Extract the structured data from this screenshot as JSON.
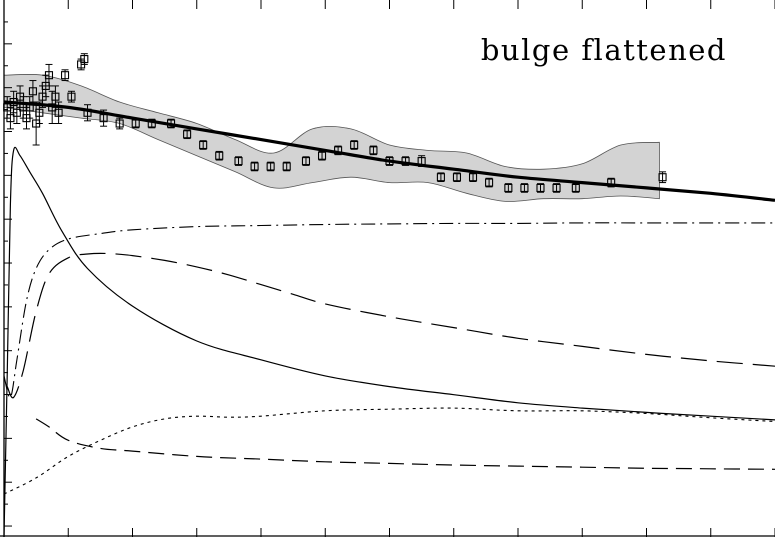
{
  "chart_data": {
    "type": "line",
    "title": "bulge flattened",
    "xlabel": "",
    "ylabel": "",
    "xlim": [
      0,
      12
    ],
    "ylim": [
      0,
      1
    ],
    "grid": false,
    "band": {
      "x": [
        0.0,
        0.6,
        1.2,
        1.8,
        2.4,
        3.0,
        3.6,
        4.2,
        4.8,
        5.4,
        6.0,
        6.6,
        7.2,
        7.8,
        8.4,
        9.0,
        9.6,
        10.2
      ],
      "upper": [
        0.86,
        0.86,
        0.84,
        0.81,
        0.79,
        0.77,
        0.74,
        0.715,
        0.76,
        0.76,
        0.73,
        0.72,
        0.715,
        0.69,
        0.685,
        0.695,
        0.73,
        0.735
      ],
      "lower": [
        0.8,
        0.79,
        0.78,
        0.77,
        0.74,
        0.71,
        0.68,
        0.65,
        0.66,
        0.67,
        0.66,
        0.66,
        0.64,
        0.625,
        0.63,
        0.63,
        0.635,
        0.63
      ]
    },
    "points": [
      {
        "x": 0.05,
        "y": 0.8,
        "err": 0.02
      },
      {
        "x": 0.1,
        "y": 0.78,
        "err": 0.02
      },
      {
        "x": 0.15,
        "y": 0.81,
        "err": 0.02
      },
      {
        "x": 0.2,
        "y": 0.79,
        "err": 0.02
      },
      {
        "x": 0.25,
        "y": 0.82,
        "err": 0.02
      },
      {
        "x": 0.3,
        "y": 0.8,
        "err": 0.02
      },
      {
        "x": 0.35,
        "y": 0.78,
        "err": 0.02
      },
      {
        "x": 0.4,
        "y": 0.8,
        "err": 0.02
      },
      {
        "x": 0.45,
        "y": 0.83,
        "err": 0.02
      },
      {
        "x": 0.5,
        "y": 0.77,
        "err": 0.04
      },
      {
        "x": 0.55,
        "y": 0.79,
        "err": 0.02
      },
      {
        "x": 0.6,
        "y": 0.82,
        "err": 0.02
      },
      {
        "x": 0.65,
        "y": 0.84,
        "err": 0.02
      },
      {
        "x": 0.7,
        "y": 0.86,
        "err": 0.02
      },
      {
        "x": 0.75,
        "y": 0.8,
        "err": 0.03
      },
      {
        "x": 0.8,
        "y": 0.82,
        "err": 0.02
      },
      {
        "x": 0.85,
        "y": 0.79,
        "err": 0.02
      },
      {
        "x": 0.95,
        "y": 0.86,
        "err": 0.01
      },
      {
        "x": 1.05,
        "y": 0.82,
        "err": 0.01
      },
      {
        "x": 1.2,
        "y": 0.88,
        "err": 0.01
      },
      {
        "x": 1.25,
        "y": 0.89,
        "err": 0.01
      },
      {
        "x": 1.3,
        "y": 0.79,
        "err": 0.015
      },
      {
        "x": 1.55,
        "y": 0.78,
        "err": 0.015
      },
      {
        "x": 1.8,
        "y": 0.77,
        "err": 0.01
      },
      {
        "x": 2.05,
        "y": 0.77,
        "err": 0.008
      },
      {
        "x": 2.3,
        "y": 0.77,
        "err": 0.008
      },
      {
        "x": 2.6,
        "y": 0.77,
        "err": 0.008
      },
      {
        "x": 2.85,
        "y": 0.75,
        "err": 0.008
      },
      {
        "x": 3.1,
        "y": 0.73,
        "err": 0.008
      },
      {
        "x": 3.35,
        "y": 0.71,
        "err": 0.008
      },
      {
        "x": 3.65,
        "y": 0.7,
        "err": 0.008
      },
      {
        "x": 3.9,
        "y": 0.69,
        "err": 0.008
      },
      {
        "x": 4.15,
        "y": 0.69,
        "err": 0.008
      },
      {
        "x": 4.4,
        "y": 0.69,
        "err": 0.008
      },
      {
        "x": 4.7,
        "y": 0.7,
        "err": 0.008
      },
      {
        "x": 4.95,
        "y": 0.71,
        "err": 0.008
      },
      {
        "x": 5.2,
        "y": 0.72,
        "err": 0.008
      },
      {
        "x": 5.45,
        "y": 0.73,
        "err": 0.008
      },
      {
        "x": 5.75,
        "y": 0.72,
        "err": 0.008
      },
      {
        "x": 6.0,
        "y": 0.7,
        "err": 0.008
      },
      {
        "x": 6.25,
        "y": 0.7,
        "err": 0.008
      },
      {
        "x": 6.5,
        "y": 0.7,
        "err": 0.01
      },
      {
        "x": 6.8,
        "y": 0.67,
        "err": 0.008
      },
      {
        "x": 7.05,
        "y": 0.67,
        "err": 0.008
      },
      {
        "x": 7.3,
        "y": 0.67,
        "err": 0.008
      },
      {
        "x": 7.55,
        "y": 0.66,
        "err": 0.008
      },
      {
        "x": 7.85,
        "y": 0.65,
        "err": 0.008
      },
      {
        "x": 8.1,
        "y": 0.65,
        "err": 0.008
      },
      {
        "x": 8.35,
        "y": 0.65,
        "err": 0.008
      },
      {
        "x": 8.6,
        "y": 0.65,
        "err": 0.008
      },
      {
        "x": 8.9,
        "y": 0.65,
        "err": 0.008
      },
      {
        "x": 9.45,
        "y": 0.66,
        "err": 0.008
      },
      {
        "x": 10.25,
        "y": 0.67,
        "err": 0.01
      }
    ],
    "series": [
      {
        "style": "thick-solid",
        "x": [
          0.0,
          1.0,
          2.0,
          3.0,
          4.0,
          5.0,
          6.0,
          7.0,
          8.0,
          9.0,
          10.0,
          11.0,
          12.0
        ],
        "y": [
          0.81,
          0.8,
          0.78,
          0.76,
          0.74,
          0.72,
          0.7,
          0.685,
          0.67,
          0.66,
          0.65,
          0.64,
          0.627
        ]
      },
      {
        "style": "thin-solid",
        "x": [
          0.0,
          0.05,
          0.1,
          0.15,
          0.25,
          0.4,
          0.6,
          0.9,
          1.3,
          2.0,
          3.0,
          4.0,
          5.0,
          6.0,
          7.0,
          8.0,
          9.0,
          10.0,
          11.0,
          12.0
        ],
        "y": [
          0.0,
          0.3,
          0.62,
          0.72,
          0.71,
          0.68,
          0.64,
          0.57,
          0.5,
          0.43,
          0.365,
          0.33,
          0.3,
          0.28,
          0.265,
          0.25,
          0.24,
          0.232,
          0.225,
          0.218
        ]
      },
      {
        "style": "dash-dot",
        "x": [
          0.0,
          0.1,
          0.2,
          0.35,
          0.5,
          0.7,
          1.0,
          1.5,
          2.0,
          3.0,
          4.0,
          5.0,
          6.0,
          7.0,
          8.0,
          9.0,
          10.0,
          11.0,
          12.0
        ],
        "y": [
          0.3,
          0.26,
          0.33,
          0.44,
          0.5,
          0.535,
          0.555,
          0.565,
          0.572,
          0.578,
          0.58,
          0.582,
          0.583,
          0.584,
          0.584,
          0.585,
          0.585,
          0.585,
          0.585
        ]
      },
      {
        "style": "long-dash",
        "x": [
          0.05,
          0.15,
          0.3,
          0.5,
          0.7,
          1.0,
          1.3,
          1.6,
          2.0,
          2.5,
          3.0,
          3.5,
          4.0,
          4.5,
          5.0,
          6.0,
          7.0,
          8.0,
          9.0,
          10.0,
          11.0,
          12.0
        ],
        "y": [
          0.28,
          0.26,
          0.31,
          0.42,
          0.49,
          0.52,
          0.527,
          0.528,
          0.524,
          0.515,
          0.503,
          0.488,
          0.47,
          0.452,
          0.434,
          0.41,
          0.39,
          0.37,
          0.355,
          0.34,
          0.328,
          0.318
        ]
      },
      {
        "style": "dotted",
        "x": [
          0.0,
          0.5,
          1.0,
          1.5,
          2.0,
          2.5,
          3.0,
          3.5,
          4.0,
          5.0,
          6.0,
          7.0,
          8.0,
          9.0,
          10.0,
          11.0,
          12.0
        ],
        "y": [
          0.08,
          0.11,
          0.15,
          0.18,
          0.205,
          0.22,
          0.225,
          0.223,
          0.225,
          0.235,
          0.238,
          0.24,
          0.235,
          0.235,
          0.23,
          0.222,
          0.215
        ]
      },
      {
        "style": "short-dash",
        "x": [
          0.5,
          0.7,
          1.0,
          1.5,
          2.0,
          3.0,
          4.0,
          5.0,
          6.0,
          7.0,
          8.0,
          9.0,
          10.0,
          11.0,
          12.0
        ],
        "y": [
          0.22,
          0.205,
          0.18,
          0.165,
          0.16,
          0.15,
          0.145,
          0.14,
          0.137,
          0.134,
          0.132,
          0.13,
          0.128,
          0.127,
          0.126
        ]
      }
    ]
  }
}
